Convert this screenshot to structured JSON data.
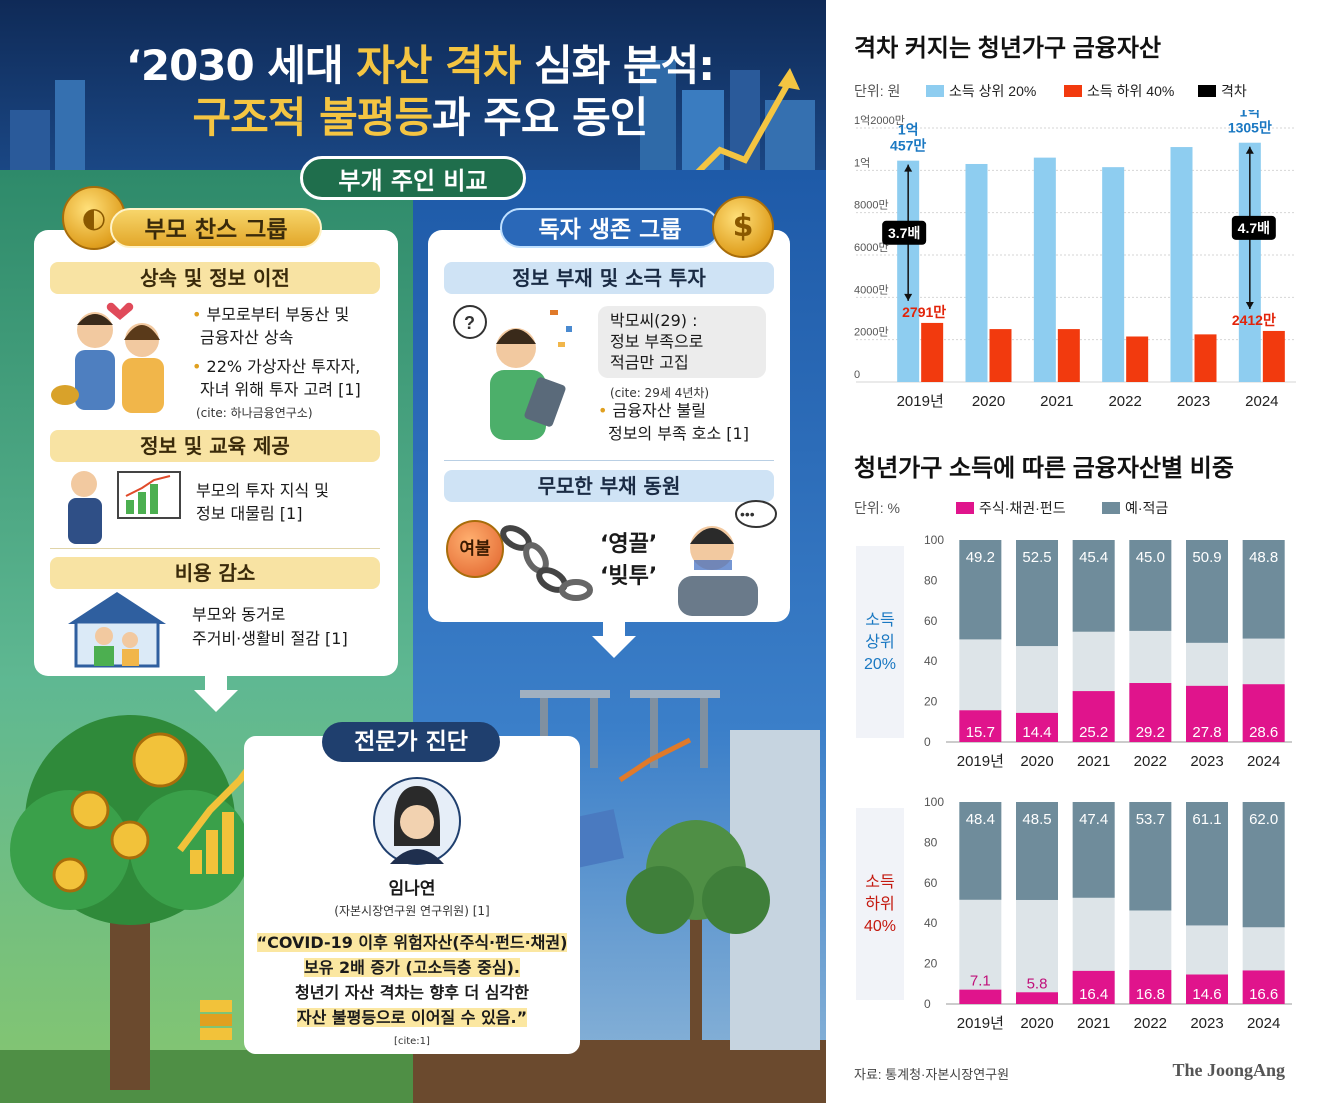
{
  "infographic": {
    "title_prefix": "‘2030 세대 ",
    "title_highlight1": "자산 격차",
    "title_suffix1": " 심화 분석:",
    "title_highlight2": "구조적 불평등",
    "title_suffix2": "과 주요 동인",
    "compare_label": "부개 주인 비교",
    "left_group": {
      "label": "부모 찬스 그룹",
      "sections": [
        {
          "title": "상속 및 정보 이전",
          "lines": [
            "부모로부터 부동산 및",
            "금융자산 상속",
            "22% 가상자산 투자자,",
            "자녀 위해 투자 고려 [1]"
          ],
          "cite": "(cite: 하나금융연구소)"
        },
        {
          "title": "정보 및 교육 제공",
          "lines": [
            "부모의 투자 지식 및",
            "정보 대물림 [1]"
          ]
        },
        {
          "title": "비용 감소",
          "lines": [
            "부모와 동거로",
            "주거비·생활비 절감 [1]"
          ]
        }
      ]
    },
    "right_group": {
      "label": "독자 생존 그룹",
      "sections": [
        {
          "title": "정보 부재 및 소극 투자",
          "bubble": [
            "박모씨(29) :",
            "정보 부족으로",
            "적금만 고집"
          ],
          "cite": "(cite: 29세 4년차)",
          "lines": [
            "금융자산 불릴",
            "정보의 부족 호소 [1]"
          ]
        },
        {
          "title": "무모한 부채 동원",
          "tag": "영끌",
          "tag2": "빚투",
          "badge": "여불"
        }
      ]
    },
    "expert": {
      "label": "전문가 진단",
      "name": "임나연",
      "role": "(자본시장연구원 연구위원) [1]",
      "quote": [
        "“COVID-19 이후 위험자산(주식·펀드·채권)",
        "보유 2배 증가 (고소득층 중심).",
        "청년기 자산 격차는 향후 더 심각한",
        "자산 불평등으로 이어질 수 있음.”"
      ],
      "cite": "[cite:1]"
    },
    "coin_symbol": "$",
    "speech_dots": "•••",
    "question_mark": "?"
  },
  "charts": {
    "source": "자료: 통계청·자본시장연구원",
    "brand": "The JoongAng",
    "colors": {
      "top20": "#8ecdf0",
      "bottom40": "#f23a0e",
      "gap": "#000000",
      "stock": "#e0148c",
      "deposit": "#6f8c9b",
      "other": "#dde4e8"
    }
  },
  "chart_data": [
    {
      "type": "bar",
      "title": "격차 커지는 청년가구 금융자산",
      "unit": "단위: 원",
      "categories": [
        "2019년",
        "2020",
        "2021",
        "2022",
        "2023",
        "2024"
      ],
      "y_tick_labels": [
        "0",
        "2000만",
        "4000만",
        "6000만",
        "8000만",
        "1억",
        "1억2000만"
      ],
      "ylim": [
        0,
        120000000
      ],
      "legend": [
        "소득 상위 20%",
        "소득 하위 40%",
        "격차"
      ],
      "series": [
        {
          "name": "소득 상위 20%",
          "values": [
            104570000,
            103000000,
            106000000,
            101500000,
            111000000,
            113050000
          ]
        },
        {
          "name": "소득 하위 40%",
          "values": [
            27910000,
            25000000,
            25000000,
            21500000,
            22500000,
            24120000
          ]
        }
      ],
      "data_labels": {
        "top_first_line1": "1억",
        "top_first_line2": "457만",
        "top_last_line1": "1억",
        "top_last_line2": "1305만",
        "bottom_first": "2791만",
        "bottom_last": "2412만",
        "gap_first": "3.7배",
        "gap_last": "4.7배"
      }
    },
    {
      "type": "bar",
      "stacked": true,
      "title": "청년가구 소득에 따른 금융자산별 비중",
      "unit": "단위: %",
      "legend": [
        "주식·채권·펀드",
        "예·적금"
      ],
      "categories": [
        "2019년",
        "2020",
        "2021",
        "2022",
        "2023",
        "2024"
      ],
      "y_tick_labels": [
        "0",
        "20",
        "40",
        "60",
        "80",
        "100"
      ],
      "ylim": [
        0,
        100
      ],
      "groups": [
        {
          "label_lines": [
            "소득",
            "상위",
            "20%"
          ],
          "series": [
            {
              "name": "주식·채권·펀드",
              "values": [
                15.7,
                14.4,
                25.2,
                29.2,
                27.8,
                28.6
              ]
            },
            {
              "name": "예·적금",
              "values": [
                49.2,
                52.5,
                45.4,
                45.0,
                50.9,
                48.8
              ]
            }
          ]
        },
        {
          "label_lines": [
            "소득",
            "하위",
            "40%"
          ],
          "series": [
            {
              "name": "주식·채권·펀드",
              "values": [
                7.1,
                5.8,
                16.4,
                16.8,
                14.6,
                16.6
              ]
            },
            {
              "name": "예·적금",
              "values": [
                48.4,
                48.5,
                47.4,
                53.7,
                61.1,
                62.0
              ]
            }
          ]
        }
      ]
    }
  ]
}
